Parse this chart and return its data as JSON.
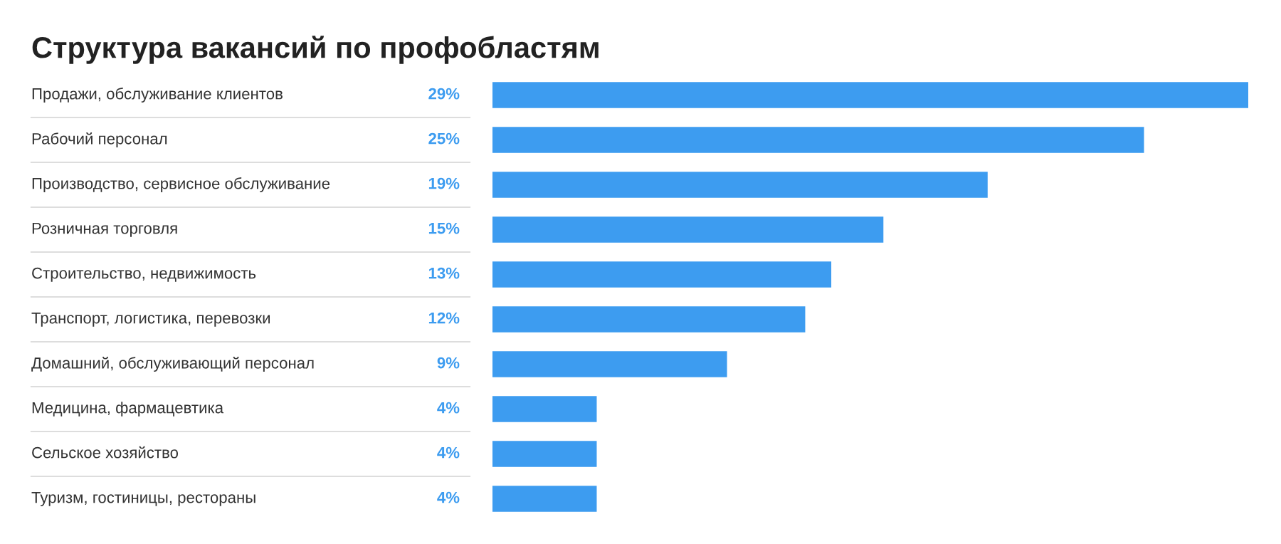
{
  "chart_data": {
    "type": "bar",
    "orientation": "horizontal",
    "title": "Структура вакансий по профобластям",
    "categories": [
      "Продажи, обслуживание клиентов",
      "Рабочий персонал",
      "Производство, сервисное обслуживание",
      "Розничная торговля",
      "Строительство, недвижимость",
      "Транспорт, логистика, перевозки",
      "Домашний, обслуживающий персонал",
      "Медицина, фармацевтика",
      "Сельское хозяйство",
      "Туризм, гостиницы, рестораны"
    ],
    "values": [
      29,
      25,
      19,
      15,
      13,
      12,
      9,
      4,
      4,
      4
    ],
    "value_labels": [
      "29%",
      "25%",
      "19%",
      "15%",
      "13%",
      "12%",
      "9%",
      "4%",
      "4%",
      "4%"
    ],
    "color": "#3d9cf0"
  }
}
